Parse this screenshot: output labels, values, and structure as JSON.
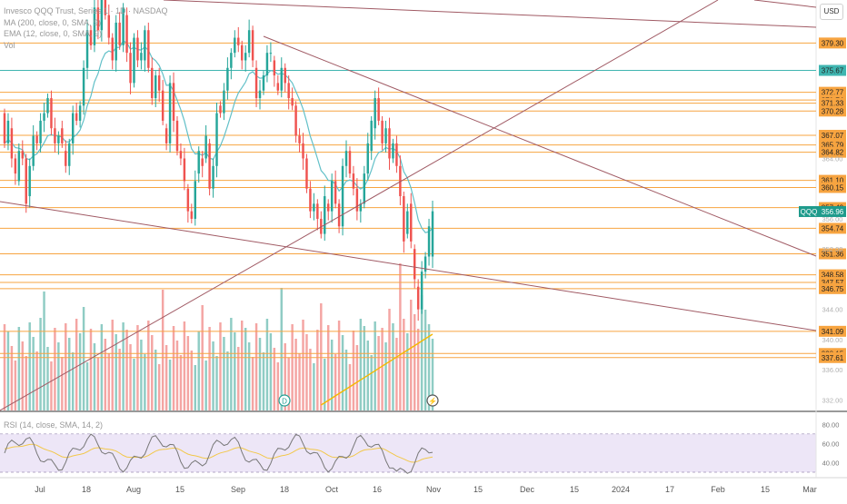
{
  "legend": {
    "title": "Invesco QQQ Trust, Series 1 · 1D · NASDAQ",
    "ma": "MA (200, close, 0, SMA, 9)",
    "ema": "EMA (12, close, 0, SMA, 9)",
    "vol": "Vol",
    "rsi": "RSI (14, close, SMA, 14, 2)"
  },
  "currency_label": "USD",
  "symbol_label": "QQQ",
  "colors": {
    "up": "#26a69a",
    "down": "#ef5350",
    "vol_up": "#8fccc4",
    "vol_down": "#f4a5a3",
    "level": "#f7a440",
    "teal_level": "#3fb5b0",
    "trend": "#a05a64",
    "ema": "#62c0c8",
    "ma": "#f5b800",
    "rsi_line": "#777777",
    "rsi_ma": "#f2c84b",
    "rsi_band": "#ede6f7"
  },
  "chart_data": {
    "type": "candlestick",
    "price_axis": {
      "range": [
        330.6,
        385.0
      ]
    },
    "x_axis": {
      "labels": [
        "Jul",
        "18",
        "Aug",
        "15",
        "Sep",
        "18",
        "Oct",
        "16",
        "Nov",
        "15",
        "Dec",
        "15",
        "2024",
        "17",
        "Feb",
        "15",
        "Mar"
      ]
    },
    "levels": [
      {
        "price": 379.3,
        "label": "379.30",
        "style": "orange"
      },
      {
        "price": 375.67,
        "label": "375.67",
        "style": "teal"
      },
      {
        "price": 372.77,
        "label": "372.77",
        "style": "orange"
      },
      {
        "price": 371.74,
        "label": "371.74",
        "style": "orange"
      },
      {
        "price": 371.33,
        "label": "371.33",
        "style": "orange"
      },
      {
        "price": 370.28,
        "label": "370.28",
        "style": "orange"
      },
      {
        "price": 367.07,
        "label": "367.07",
        "style": "orange"
      },
      {
        "price": 365.79,
        "label": "365.79",
        "style": "orange"
      },
      {
        "price": 364.82,
        "label": "364.82",
        "style": "orange"
      },
      {
        "price": 361.1,
        "label": "361.10",
        "style": "orange"
      },
      {
        "price": 360.15,
        "label": "360.15",
        "style": "orange"
      },
      {
        "price": 357.49,
        "label": "357.49",
        "style": "orange"
      },
      {
        "price": 354.74,
        "label": "354.74",
        "style": "orange"
      },
      {
        "price": 351.36,
        "label": "351.36",
        "style": "orange"
      },
      {
        "price": 348.58,
        "label": "348.58",
        "style": "orange"
      },
      {
        "price": 347.57,
        "label": "347.57",
        "style": "orange"
      },
      {
        "price": 346.75,
        "label": "346.75",
        "style": "orange"
      },
      {
        "price": 341.09,
        "label": "341.09",
        "style": "orange"
      },
      {
        "price": 338.15,
        "label": "338.15",
        "style": "orange"
      },
      {
        "price": 337.61,
        "label": "337.61",
        "style": "orange"
      }
    ],
    "last_price": {
      "price": 356.96,
      "label": "356.96"
    },
    "faint_ticks": [
      "364.00",
      "356.00",
      "352.00",
      "344.00",
      "340.00",
      "336.00",
      "332.00"
    ],
    "rsi_ticks": [
      "80.00",
      "60.00",
      "40.00"
    ],
    "rsi_range": [
      30,
      85
    ],
    "rsi_band": [
      30,
      70
    ],
    "markers": [
      "D",
      "⚡"
    ]
  }
}
